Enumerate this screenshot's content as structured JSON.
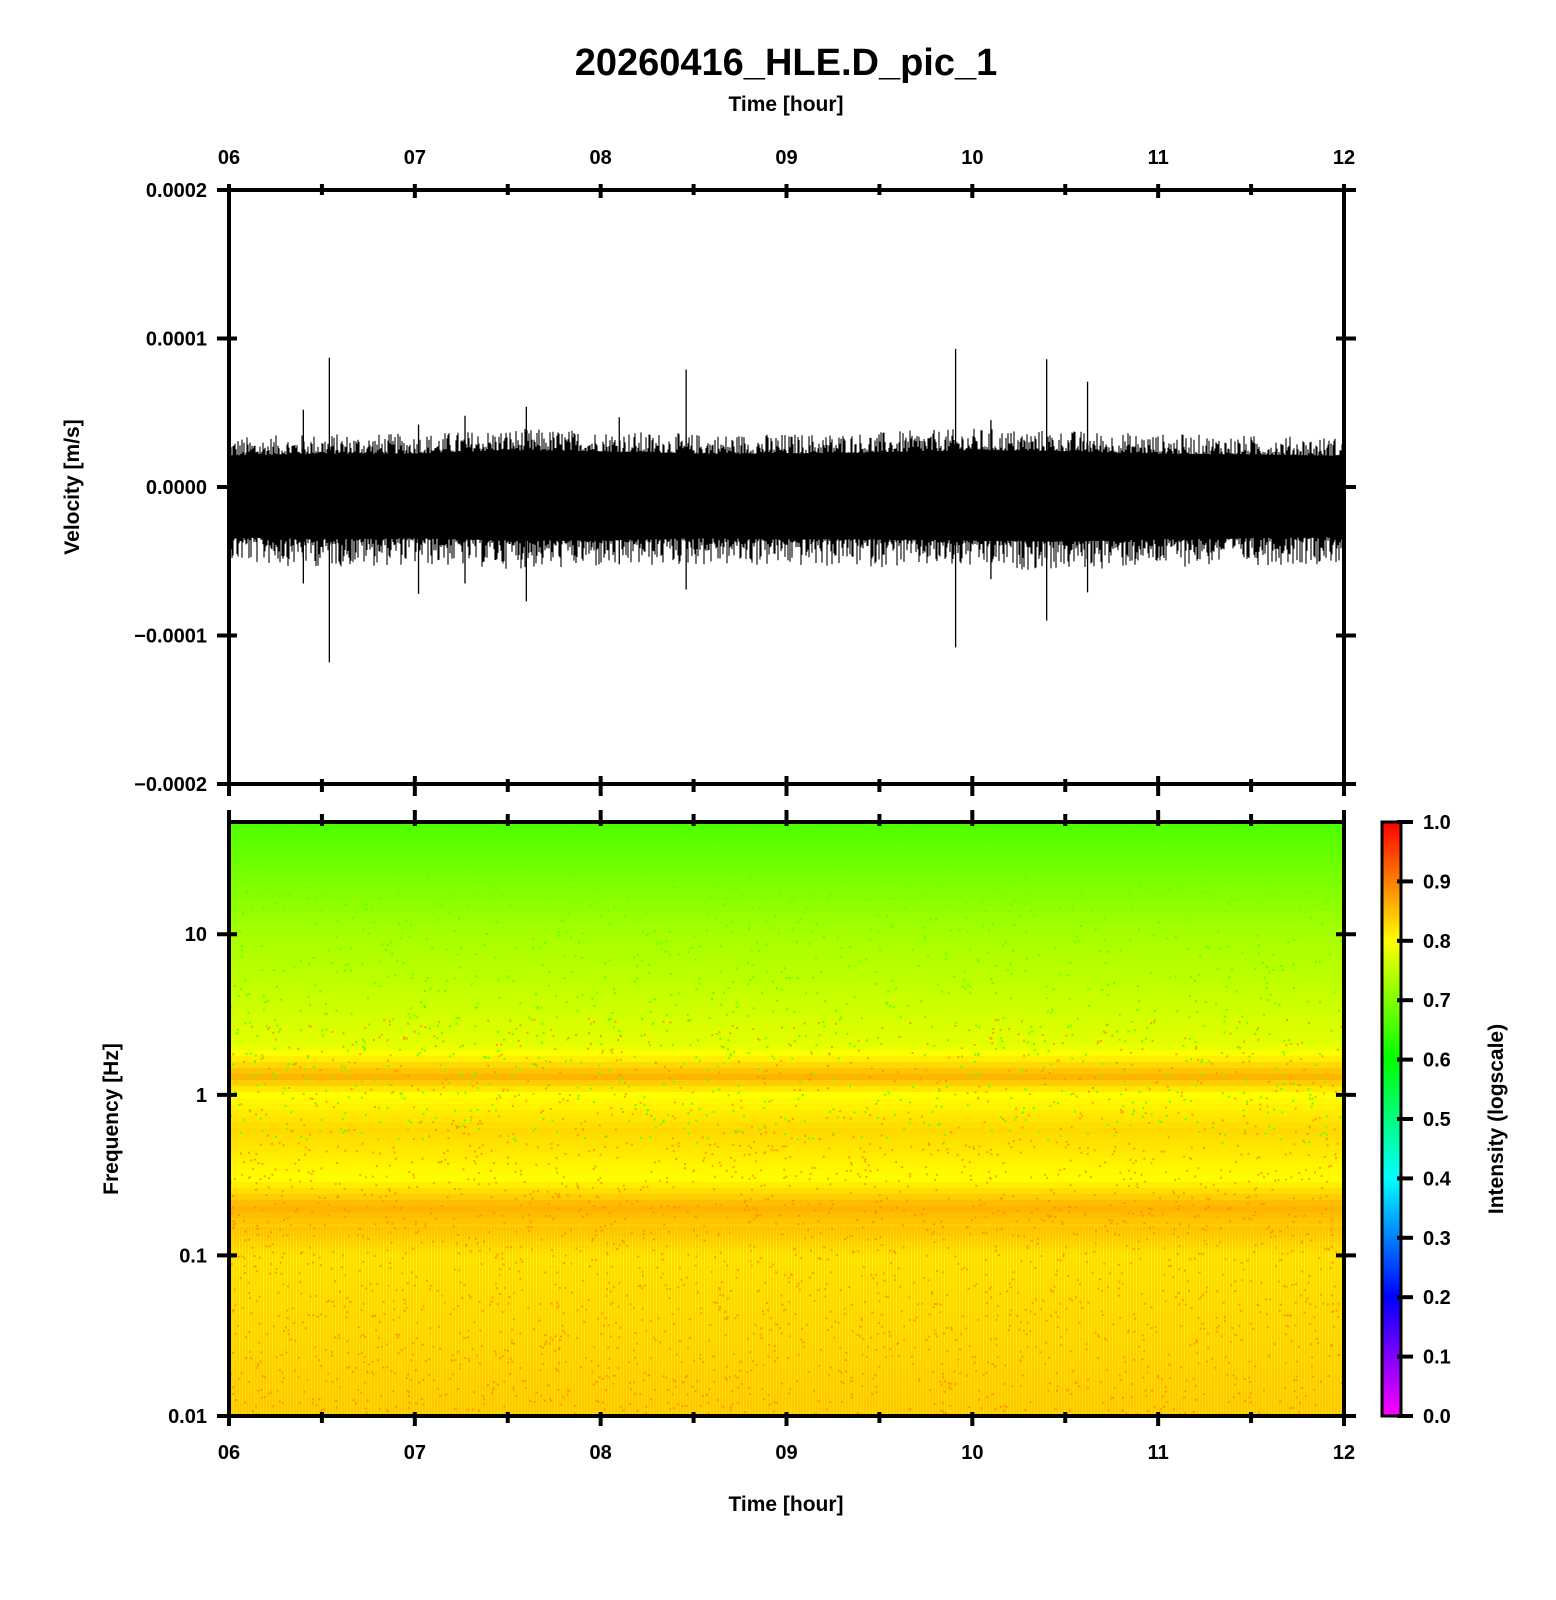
{
  "title": "20260416_HLE.D_pic_1",
  "top_xlabel": "Time [hour]",
  "bottom_xlabel": "Time [hour]",
  "colors": {
    "frame": "#000000",
    "trace": "#000000",
    "colormap": [
      "#ff00ff",
      "#0000ff",
      "#00ffff",
      "#00ff00",
      "#ffff00",
      "#ff0000"
    ]
  },
  "chart_data": [
    {
      "type": "line",
      "panel": "waveform",
      "xlabel": "Time [hour]",
      "ylabel": "Velocity [m/s]",
      "xlim": [
        6,
        12
      ],
      "ylim": [
        -0.0002,
        0.0002
      ],
      "x_tick_labels": [
        "06",
        "07",
        "08",
        "09",
        "10",
        "11",
        "12"
      ],
      "y_tick_labels": [
        "0.0002",
        "0.0001",
        "0.0000",
        "−0.0001",
        "−0.0002"
      ],
      "y_ticks": [
        0.0002,
        0.0001,
        0.0,
        -0.0001,
        -0.0002
      ],
      "noise_envelope": {
        "x": [
          6.0,
          6.5,
          7.0,
          7.5,
          8.0,
          8.5,
          9.0,
          9.5,
          10.0,
          10.5,
          11.0,
          11.5,
          12.0
        ],
        "upper": [
          2.8e-05,
          3e-05,
          3e-05,
          3.3e-05,
          3.2e-05,
          3e-05,
          3e-05,
          3.1e-05,
          3.3e-05,
          3.2e-05,
          3e-05,
          2.9e-05,
          2.8e-05
        ],
        "lower": [
          -4.5e-05,
          -4.7e-05,
          -4.6e-05,
          -4.8e-05,
          -4.8e-05,
          -4.6e-05,
          -4.7e-05,
          -4.7e-05,
          -4.8e-05,
          -4.9e-05,
          -4.7e-05,
          -4.6e-05,
          -4.5e-05
        ]
      },
      "spikes": [
        {
          "x": 6.54,
          "max": 8.7e-05,
          "min": -0.000118
        },
        {
          "x": 6.4,
          "max": 5.2e-05,
          "min": -6.5e-05
        },
        {
          "x": 7.02,
          "max": 4.2e-05,
          "min": -7.2e-05
        },
        {
          "x": 7.27,
          "max": 4.8e-05,
          "min": -6.5e-05
        },
        {
          "x": 7.6,
          "max": 5.4e-05,
          "min": -7.7e-05
        },
        {
          "x": 8.1,
          "max": 4.7e-05,
          "min": -5.2e-05
        },
        {
          "x": 8.46,
          "max": 7.9e-05,
          "min": -6.9e-05
        },
        {
          "x": 9.91,
          "max": 9.3e-05,
          "min": -0.000108
        },
        {
          "x": 10.1,
          "max": 4.5e-05,
          "min": -6.2e-05
        },
        {
          "x": 10.4,
          "max": 8.6e-05,
          "min": -9e-05
        },
        {
          "x": 10.62,
          "max": 7.1e-05,
          "min": -7.1e-05
        }
      ]
    },
    {
      "type": "heatmap",
      "panel": "spectrogram",
      "xlabel": "Time [hour]",
      "ylabel": "Frequency [Hz]",
      "xlim": [
        6,
        12
      ],
      "ylim": [
        0.01,
        50
      ],
      "yscale": "log",
      "x_tick_labels": [
        "06",
        "07",
        "08",
        "09",
        "10",
        "11",
        "12"
      ],
      "y_tick_labels": [
        "10",
        "1",
        "0.1",
        "0.01"
      ],
      "y_ticks": [
        10,
        1,
        0.1,
        0.01
      ],
      "intensity_profile": {
        "frequency_hz": [
          0.01,
          0.1,
          0.2,
          0.3,
          0.6,
          1.0,
          1.3,
          2.0,
          5.0,
          10,
          20,
          50
        ],
        "intensity": [
          0.83,
          0.81,
          0.86,
          0.8,
          0.83,
          0.8,
          0.86,
          0.78,
          0.75,
          0.73,
          0.7,
          0.66
        ]
      },
      "colorbar": {
        "label": "Intensity (logscale)",
        "range": [
          0.0,
          1.0
        ],
        "tick_labels": [
          "1.0",
          "0.9",
          "0.8",
          "0.7",
          "0.6",
          "0.5",
          "0.4",
          "0.3",
          "0.2",
          "0.1",
          "0.0"
        ],
        "ticks": [
          1.0,
          0.9,
          0.8,
          0.7,
          0.6,
          0.5,
          0.4,
          0.3,
          0.2,
          0.1,
          0.0
        ]
      }
    }
  ]
}
